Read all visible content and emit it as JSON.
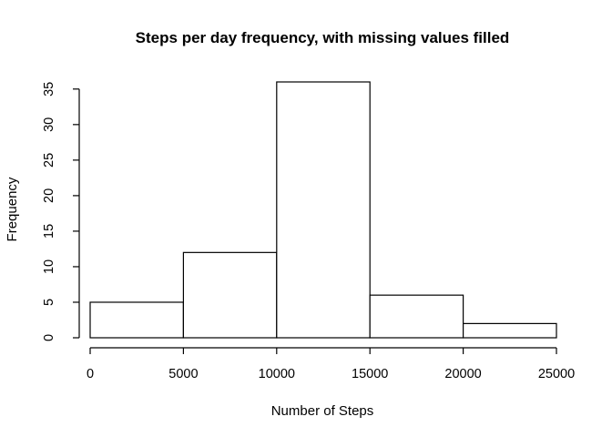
{
  "chart_data": {
    "type": "bar",
    "title": "Steps per day frequency, with missing values filled",
    "xlabel": "Number of Steps",
    "ylabel": "Frequency",
    "bins": [
      {
        "start": 0,
        "end": 5000,
        "count": 5
      },
      {
        "start": 5000,
        "end": 10000,
        "count": 12
      },
      {
        "start": 10000,
        "end": 15000,
        "count": 36
      },
      {
        "start": 15000,
        "end": 20000,
        "count": 6
      },
      {
        "start": 20000,
        "end": 25000,
        "count": 2
      }
    ],
    "x_ticks": [
      0,
      5000,
      10000,
      15000,
      20000,
      25000
    ],
    "y_ticks": [
      0,
      5,
      10,
      15,
      20,
      25,
      30,
      35
    ],
    "xlim": [
      0,
      25000
    ],
    "ylim": [
      0,
      36
    ],
    "grid": false,
    "legend": "none"
  }
}
